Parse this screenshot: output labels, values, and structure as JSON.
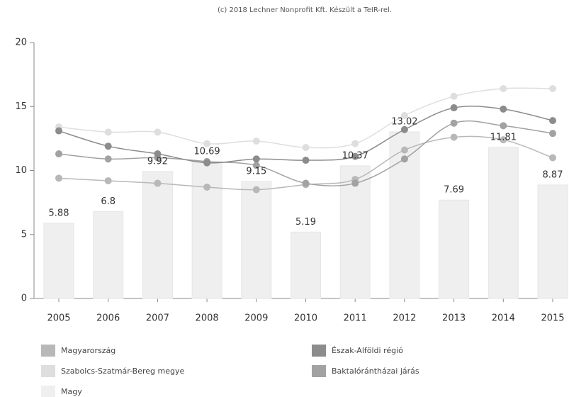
{
  "chart_data": {
    "type": "combo",
    "subtitle": "(c) 2018 Lechner Nonprofit Kft. Készült a TeIR-rel.",
    "categories": [
      "2005",
      "2006",
      "2007",
      "2008",
      "2009",
      "2010",
      "2011",
      "2012",
      "2013",
      "2014",
      "2015"
    ],
    "ylim": [
      0,
      20
    ],
    "yticks": [
      0,
      5,
      10,
      15,
      20
    ],
    "grid": false,
    "series": [
      {
        "name": "Magy",
        "type": "bar",
        "color": "#efefef",
        "values": [
          5.88,
          6.8,
          9.92,
          10.69,
          9.15,
          5.19,
          10.37,
          13.02,
          7.69,
          11.81,
          8.87
        ]
      },
      {
        "name": "Magyarország",
        "type": "line",
        "color": "#b8b8b8",
        "values": [
          9.4,
          9.2,
          9.0,
          8.7,
          8.5,
          8.9,
          9.3,
          11.6,
          12.6,
          12.4,
          11.0
        ]
      },
      {
        "name": "Szabolcs-Szatmár-Bereg megye",
        "type": "line",
        "color": "#dedede",
        "values": [
          13.4,
          13.0,
          13.0,
          12.1,
          12.3,
          11.8,
          12.1,
          14.3,
          15.8,
          16.4,
          16.4
        ]
      },
      {
        "name": "Baktalórántházai járás",
        "type": "line",
        "color": "#a2a2a2",
        "values": [
          11.3,
          10.9,
          11.0,
          10.7,
          10.4,
          9.0,
          9.0,
          10.9,
          13.7,
          13.5,
          12.9
        ]
      },
      {
        "name": "Észak-Alföldi régió",
        "type": "line",
        "color": "#8c8c8c",
        "values": [
          13.1,
          11.9,
          11.3,
          10.6,
          10.9,
          10.8,
          11.1,
          13.2,
          14.9,
          14.8,
          13.9
        ]
      }
    ],
    "legend_order": [
      1,
      4,
      2,
      3,
      0
    ]
  }
}
